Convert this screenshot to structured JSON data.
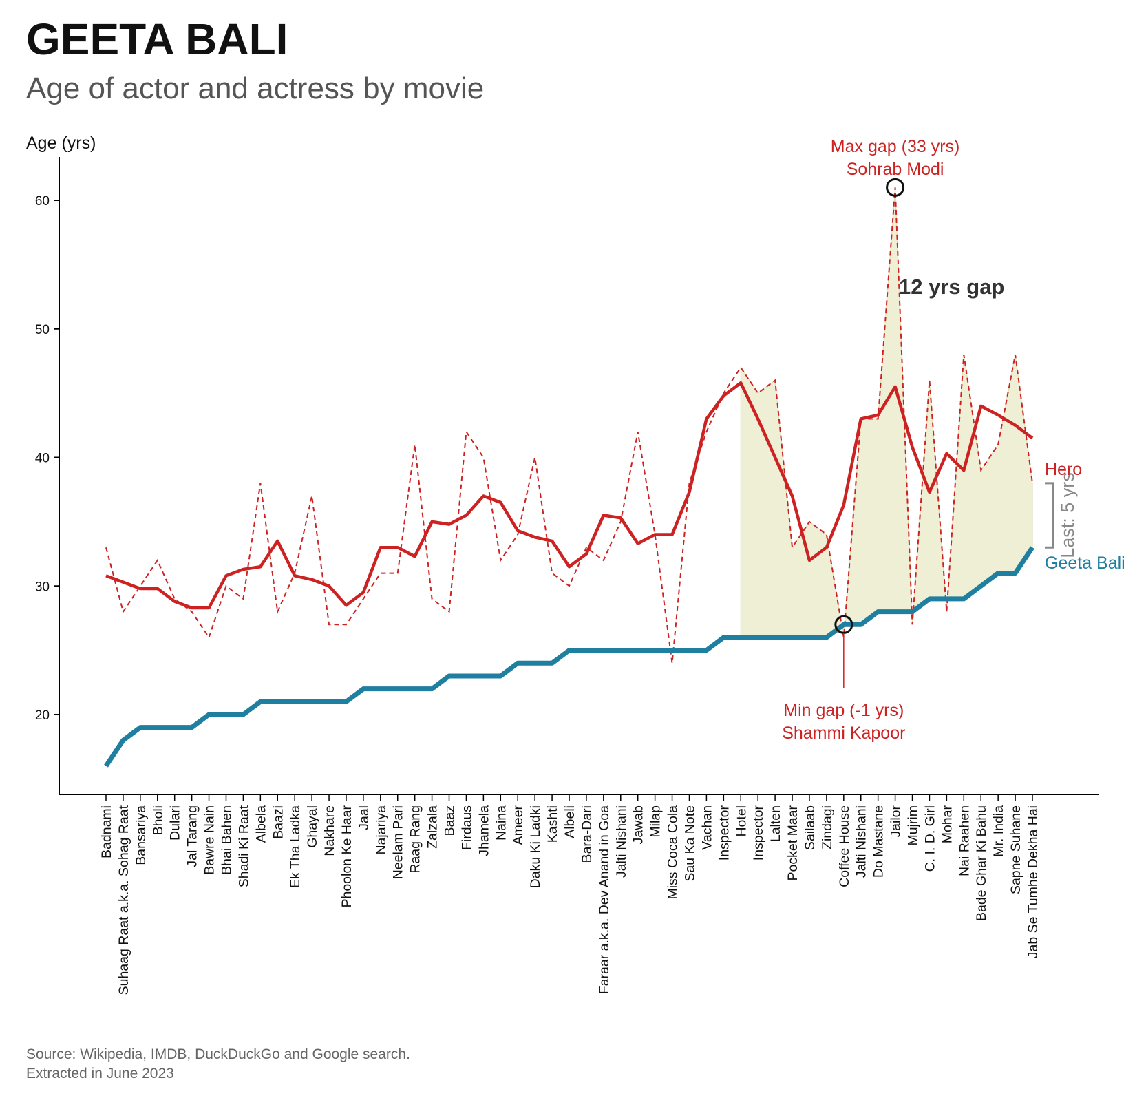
{
  "title": "GEETA BALI",
  "subtitle": "Age of actor and actress by movie",
  "source": {
    "line1": "Source: Wikipedia, IMDB, DuckDuckGo and Google search.",
    "line2": "Extracted in June 2023"
  },
  "colors": {
    "hero": "#cc2222",
    "actress": "#1f7fa0",
    "gap_fill": "#efefd6",
    "axis": "#000000",
    "bracket": "#888888",
    "annotation_text": "#333333"
  },
  "chart_data": {
    "type": "line",
    "ylabel": "Age (yrs)",
    "ylim": [
      14,
      63
    ],
    "yticks": [
      20,
      30,
      40,
      50,
      60
    ],
    "categories": [
      "Badnami",
      "Suhaag Raat a.k.a. Sohag Raat",
      "Bansariya",
      "Bholi",
      "Dulari",
      "Jal Tarang",
      "Bawre Nain",
      "Bhai Bahen",
      "Shadi Ki Raat",
      "Albela",
      "Baazi",
      "Ek Tha Ladka",
      "Ghayal",
      "Nakhare",
      "Phoolon Ke Haar",
      "Jaal",
      "Najariya",
      "Neelam Pari",
      "Raag Rang",
      "Zalzala",
      "Baaz",
      "Firdaus",
      "Jhamela",
      "Naina",
      "Ameer",
      "Daku Ki Ladki",
      "Kashti",
      "Albeli",
      "Bara-Dari",
      "Faraar a.k.a. Dev Anand in Goa",
      "Jalti Nishani",
      "Jawab",
      "Milap",
      "Miss Coca Cola",
      "Sau Ka Note",
      "Vachan",
      "Inspector",
      "Hotel",
      "Inspector",
      "Lalten",
      "Pocket Maar",
      "Sailaab",
      "Zindagi",
      "Coffee House",
      "Jalti Nishani",
      "Do Mastane",
      "Jailor",
      "Mujrim",
      "C. I. D. Girl",
      "Mohar",
      "Nai Raahen",
      "Bade Ghar Ki Bahu",
      "Mr. India",
      "Sapne Suhane",
      "Jab Se Tumhe Dekha Hai"
    ],
    "series": [
      {
        "name": "Hero",
        "style": "dashed",
        "values": [
          33,
          28,
          30,
          32,
          29,
          28,
          26,
          30,
          29,
          38,
          28,
          31,
          37,
          27,
          27,
          29,
          31,
          31,
          41,
          29,
          28,
          42,
          40,
          32,
          34,
          40,
          31,
          30,
          33,
          32,
          35,
          42,
          34,
          24,
          38,
          42,
          45,
          47,
          45,
          46,
          33,
          35,
          34,
          26,
          43,
          43,
          61,
          27,
          46,
          28,
          48,
          39,
          41,
          48,
          38
        ]
      },
      {
        "name": "Hero rolling average",
        "style": "solid",
        "values": [
          30.8,
          30.3,
          29.8,
          29.8,
          28.8,
          28.3,
          28.3,
          30.8,
          31.3,
          31.5,
          33.5,
          30.8,
          30.5,
          30.0,
          28.5,
          29.5,
          33.0,
          33.0,
          32.3,
          35.0,
          34.8,
          35.5,
          37.0,
          36.5,
          34.3,
          33.8,
          33.5,
          31.5,
          32.5,
          35.5,
          35.3,
          33.3,
          34.0,
          34.0,
          37.3,
          43.0,
          44.8,
          45.8,
          43.0,
          40.0,
          37.0,
          32.0,
          33.0,
          36.3,
          43.0,
          43.3,
          45.5,
          40.8,
          37.3,
          40.3,
          39.0,
          44.0,
          43.3,
          42.5,
          41.5
        ]
      },
      {
        "name": "Geeta Bali",
        "style": "solid",
        "values": [
          16,
          18,
          19,
          19,
          19,
          19,
          20,
          20,
          20,
          21,
          21,
          21,
          21,
          21,
          21,
          22,
          22,
          22,
          22,
          22,
          23,
          23,
          23,
          23,
          24,
          24,
          24,
          25,
          25,
          25,
          25,
          25,
          25,
          25,
          25,
          25,
          26,
          26,
          26,
          26,
          26,
          26,
          26,
          27,
          27,
          28,
          28,
          28,
          29,
          29,
          29,
          30,
          31,
          31,
          33
        ]
      }
    ],
    "shaded_gap_from_category": "Hotel",
    "annotations": {
      "max_gap": {
        "label_line1": "Max gap (33 yrs)",
        "label_line2": "Sohrab Modi",
        "category": "Jailor",
        "value": 61
      },
      "min_gap": {
        "label_line1": "Min gap (-1 yrs)",
        "label_line2": "Shammi Kapoor",
        "category": "Coffee House",
        "value": 27
      },
      "gap_label": "12 yrs gap",
      "last_gap_label": "Last: 5 yrs",
      "hero_label": "Hero",
      "actress_label": "Geeta Bali"
    }
  }
}
